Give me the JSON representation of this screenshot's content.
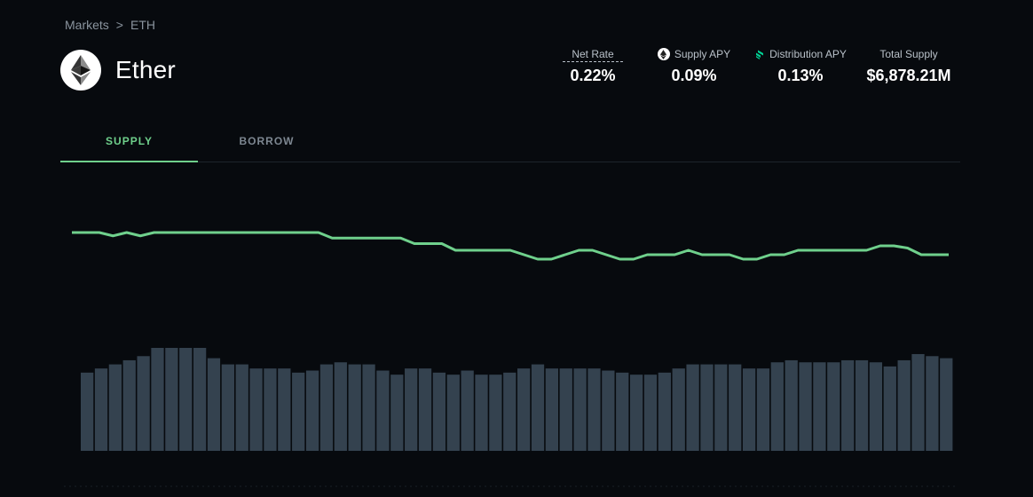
{
  "breadcrumb": {
    "root": "Markets",
    "separator": ">",
    "current": "ETH"
  },
  "asset": {
    "name": "Ether",
    "icon": "ethereum-icon"
  },
  "stats": {
    "net_rate": {
      "label": "Net Rate",
      "value": "0.22%"
    },
    "supply_apy": {
      "label": "Supply APY",
      "value": "0.09%",
      "icon": "ethereum-icon"
    },
    "distribution_apy": {
      "label": "Distribution APY",
      "value": "0.13%",
      "icon": "compound-icon"
    },
    "total_supply": {
      "label": "Total Supply",
      "value": "$6,878.21M"
    }
  },
  "tabs": [
    {
      "label": "SUPPLY",
      "active": true
    },
    {
      "label": "BORROW",
      "active": false
    }
  ],
  "colors": {
    "accent": "#6fd08c",
    "bar": "#34424f",
    "background": "#070a0e"
  },
  "chart_data": {
    "type": "line+bar",
    "line": {
      "name": "",
      "values": [
        1.0,
        1.0,
        1.0,
        0.97,
        1.0,
        0.97,
        1.0,
        1.0,
        1.0,
        1.0,
        1.0,
        1.0,
        1.0,
        1.0,
        1.0,
        1.0,
        1.0,
        1.0,
        1.0,
        0.95,
        0.95,
        0.95,
        0.95,
        0.95,
        0.95,
        0.9,
        0.9,
        0.9,
        0.84,
        0.84,
        0.84,
        0.84,
        0.84,
        0.8,
        0.76,
        0.76,
        0.8,
        0.84,
        0.84,
        0.8,
        0.76,
        0.76,
        0.8,
        0.8,
        0.8,
        0.84,
        0.8,
        0.8,
        0.8,
        0.76,
        0.76,
        0.8,
        0.8,
        0.84,
        0.84,
        0.84,
        0.84,
        0.84,
        0.84,
        0.88,
        0.88,
        0.86,
        0.8,
        0.8,
        0.8
      ]
    },
    "bars": {
      "name": "",
      "values": [
        0.76,
        0.8,
        0.84,
        0.88,
        0.92,
        1.0,
        1.0,
        1.0,
        1.0,
        0.9,
        0.84,
        0.84,
        0.8,
        0.8,
        0.8,
        0.76,
        0.78,
        0.84,
        0.86,
        0.84,
        0.84,
        0.78,
        0.74,
        0.8,
        0.8,
        0.76,
        0.74,
        0.78,
        0.74,
        0.74,
        0.76,
        0.8,
        0.84,
        0.8,
        0.8,
        0.8,
        0.8,
        0.78,
        0.76,
        0.74,
        0.74,
        0.76,
        0.8,
        0.84,
        0.84,
        0.84,
        0.84,
        0.8,
        0.8,
        0.86,
        0.88,
        0.86,
        0.86,
        0.86,
        0.88,
        0.88,
        0.86,
        0.82,
        0.88,
        0.94,
        0.92,
        0.9
      ]
    }
  }
}
